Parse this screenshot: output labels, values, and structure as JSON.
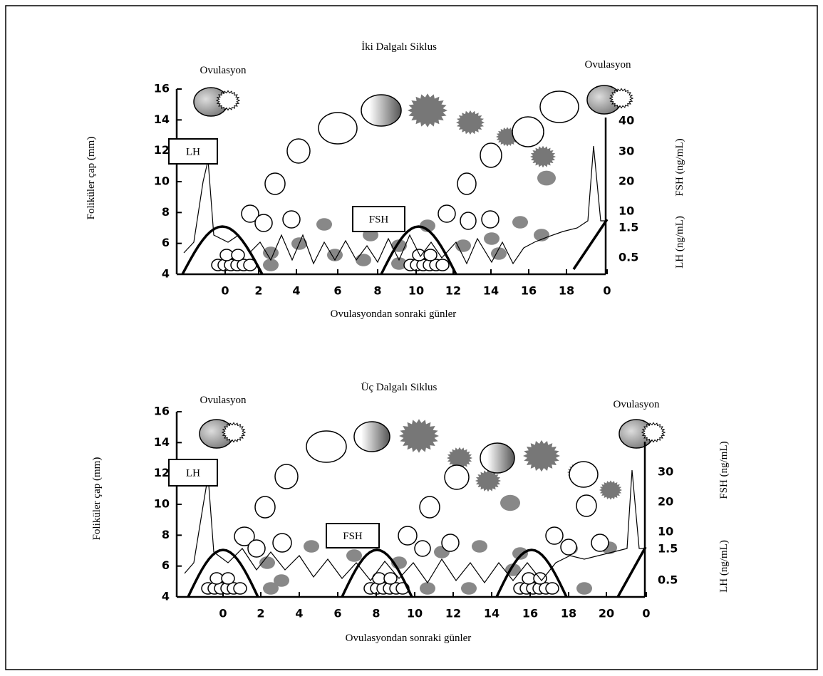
{
  "panels": [
    {
      "title": "İki Dalgalı Siklus",
      "ovulation_labels": [
        "Ovulasyon",
        "Ovulasyon"
      ],
      "lh_label": "LH",
      "fsh_label": "FSH",
      "y_axis_label": "Foliküler çap (mm)",
      "y_ticks": [
        "16",
        "14",
        "12",
        "10",
        "8",
        "6",
        "4"
      ],
      "right_fsh_label": "FSH (ng/mL)",
      "right_lh_label": "LH (ng/mL)",
      "fsh_ticks": [
        "40",
        "30",
        "20",
        "10"
      ],
      "lh_ticks": [
        "1.5",
        "0.5"
      ],
      "x_ticks": [
        "0",
        "2",
        "4",
        "6",
        "8",
        "10",
        "12",
        "14",
        "16",
        "18",
        "0"
      ],
      "x_axis_label": "Ovulasyondan sonraki günler"
    },
    {
      "title": "Üç Dalgalı Siklus",
      "ovulation_labels": [
        "Ovulasyon",
        "Ovulasyon"
      ],
      "lh_label": "LH",
      "fsh_label": "FSH",
      "y_axis_label": "Foliküler çap (mm)",
      "y_ticks": [
        "16",
        "14",
        "12",
        "10",
        "8",
        "6",
        "4"
      ],
      "right_fsh_label": "FSH (ng/mL)",
      "right_lh_label": "LH (ng/mL)",
      "fsh_ticks": [
        "30",
        "20",
        "10"
      ],
      "lh_ticks": [
        "1.5",
        "0.5"
      ],
      "x_ticks": [
        "0",
        "2",
        "4",
        "6",
        "8",
        "10",
        "12",
        "14",
        "16",
        "18",
        "20",
        "0"
      ],
      "x_axis_label": "Ovulasyondan sonraki günler"
    }
  ]
}
